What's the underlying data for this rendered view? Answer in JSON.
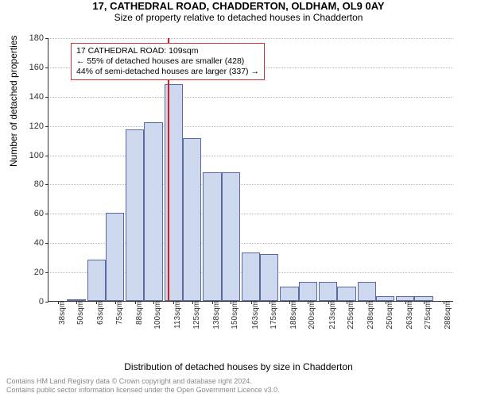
{
  "header": {
    "title": "17, CATHEDRAL ROAD, CHADDERTON, OLDHAM, OL9 0AY",
    "subtitle": "Size of property relative to detached houses in Chadderton"
  },
  "chart": {
    "type": "histogram",
    "ylabel": "Number of detached properties",
    "xlabel": "Distribution of detached houses by size in Chadderton",
    "ylim": [
      0,
      180
    ],
    "ytick_step": 20,
    "yticks": [
      0,
      20,
      40,
      60,
      80,
      100,
      120,
      140,
      160,
      180
    ],
    "xticks": [
      "38sqm",
      "50sqm",
      "63sqm",
      "75sqm",
      "88sqm",
      "100sqm",
      "113sqm",
      "125sqm",
      "138sqm",
      "150sqm",
      "163sqm",
      "175sqm",
      "188sqm",
      "200sqm",
      "213sqm",
      "225sqm",
      "238sqm",
      "250sqm",
      "263sqm",
      "275sqm",
      "288sqm"
    ],
    "bin_centers": [
      38,
      50,
      63,
      75,
      88,
      100,
      113,
      125,
      138,
      150,
      163,
      175,
      188,
      200,
      213,
      225,
      238,
      250,
      263,
      275,
      288
    ],
    "values": [
      0,
      1,
      28,
      60,
      117,
      122,
      148,
      111,
      88,
      88,
      33,
      32,
      10,
      13,
      13,
      10,
      13,
      3,
      3,
      3,
      0
    ],
    "bar_fill": "#cdd8ef",
    "bar_stroke": "#5a6aa0",
    "grid_color": "#bbbbbb",
    "background_color": "#ffffff",
    "marker": {
      "x_value": 109,
      "color": "#d02020"
    },
    "fontsize_labels": 12,
    "fontsize_ticks": 11
  },
  "annotation": {
    "line1": "17 CATHEDRAL ROAD: 109sqm",
    "line2": "← 55% of detached houses are smaller (428)",
    "line3": "44% of semi-detached houses are larger (337) →"
  },
  "footer": {
    "line1": "Contains HM Land Registry data © Crown copyright and database right 2024.",
    "line2": "Contains public sector information licensed under the Open Government Licence v3.0."
  }
}
